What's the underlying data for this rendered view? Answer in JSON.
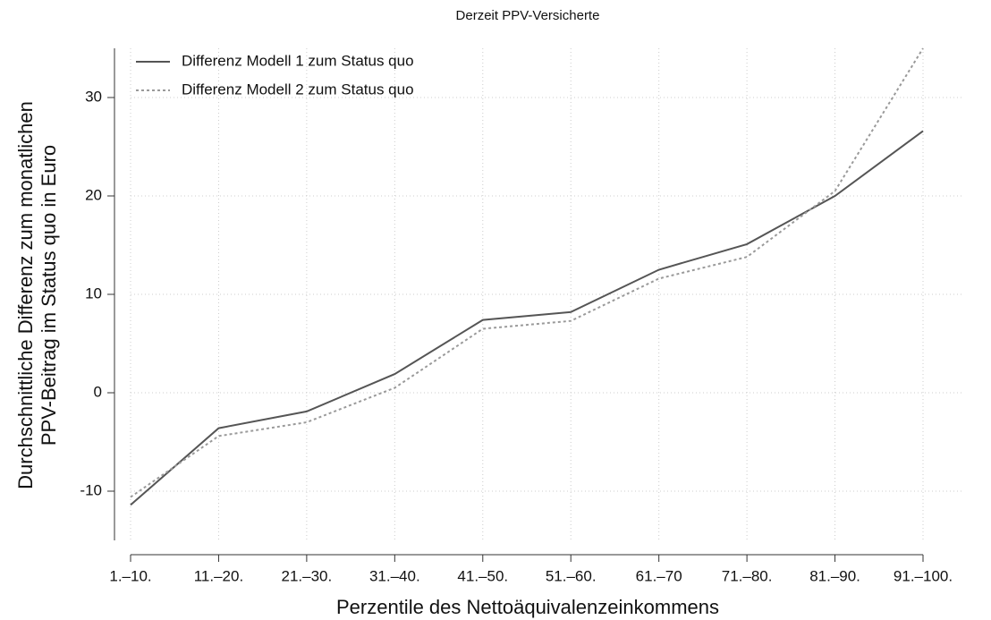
{
  "chart_data": {
    "type": "line",
    "title": "Derzeit PPV-Versicherte",
    "xlabel": "Perzentile des Nettoäquivalenzeinkommens",
    "ylabel": [
      "Durchschnittliche Differenz zum monatlichen",
      "PPV-Beitrag im Status quo in Euro"
    ],
    "categories": [
      "1.–10.",
      "11.–20.",
      "21.–30.",
      "31.–40.",
      "41.–50.",
      "51.–60.",
      "61.–70",
      "71.–80.",
      "81.–90.",
      "91.–100."
    ],
    "series": [
      {
        "name": "Differenz Modell 1 zum Status quo",
        "color": "#555555",
        "dash": "solid",
        "values": [
          -11.4,
          -3.6,
          -1.9,
          1.9,
          7.4,
          8.2,
          12.5,
          15.1,
          20.0,
          26.6
        ]
      },
      {
        "name": "Differenz Modell 2 zum Status quo",
        "color": "#9a9a9a",
        "dash": "dotted",
        "values": [
          -10.6,
          -4.4,
          -3.0,
          0.5,
          6.5,
          7.3,
          11.6,
          13.8,
          20.5,
          35.0
        ]
      }
    ],
    "ylim": [
      -15,
      35
    ],
    "yticks": [
      -10,
      0,
      10,
      20,
      30
    ],
    "grid": true,
    "legend": "upper left"
  }
}
